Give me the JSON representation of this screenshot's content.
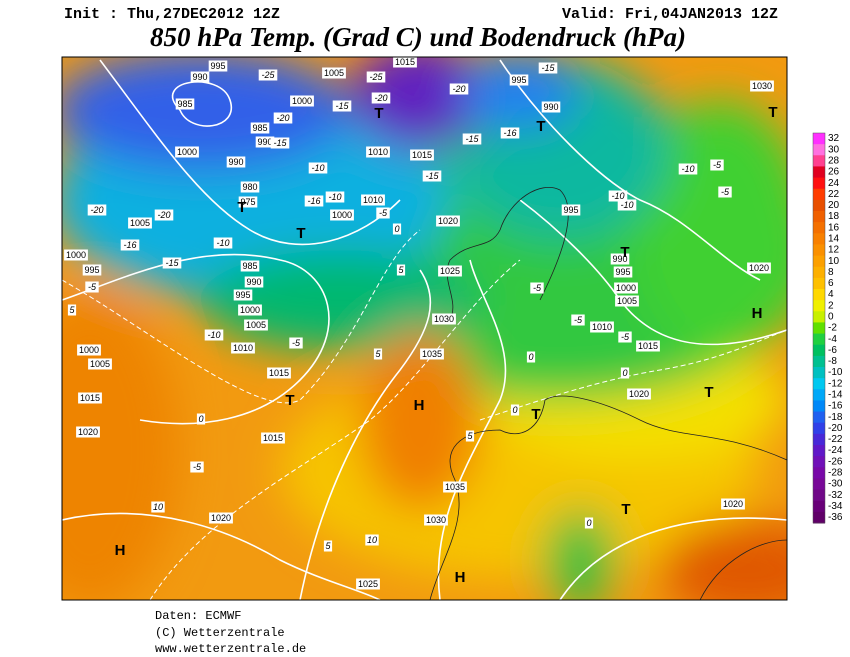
{
  "header": {
    "init": "Init : Thu,27DEC2012 12Z",
    "valid": "Valid: Fri,04JAN2013 12Z",
    "title": "850 hPa Temp. (Grad C) und Bodendruck (hPa)"
  },
  "legend": {
    "values": [
      32,
      30,
      28,
      26,
      24,
      22,
      20,
      18,
      16,
      14,
      12,
      10,
      8,
      6,
      4,
      2,
      0,
      -2,
      -4,
      -6,
      -8,
      -10,
      -12,
      -14,
      -16,
      -18,
      -20,
      -22,
      -24,
      -26,
      -28,
      -30,
      -32,
      -34,
      -36
    ],
    "colors": [
      "#ff30ff",
      "#ff70e0",
      "#ff4090",
      "#e00020",
      "#ff1010",
      "#ff3c00",
      "#e85000",
      "#f06000",
      "#f47000",
      "#f88000",
      "#fa9000",
      "#fca000",
      "#fdb000",
      "#fec000",
      "#ffd800",
      "#f0f000",
      "#c8f000",
      "#60e000",
      "#20d040",
      "#00c060",
      "#00c090",
      "#00c0c0",
      "#00c8f0",
      "#00a8f8",
      "#0088f8",
      "#2060f0",
      "#3040e8",
      "#4828d8",
      "#6018c8",
      "#7010b8",
      "#7808a8",
      "#780898",
      "#700888",
      "#680078",
      "#600068"
    ]
  },
  "map_labels": {
    "isobars": [
      "995",
      "990",
      "985",
      "1005",
      "1000",
      "985",
      "990",
      "1000",
      "990",
      "980",
      "975",
      "1005",
      "1000",
      "1010",
      "1010",
      "1015",
      "1015",
      "995",
      "990",
      "1030",
      "995",
      "1020",
      "1025",
      "1030",
      "1035",
      "990",
      "995",
      "1000",
      "1005",
      "1010",
      "1015",
      "1020",
      "1000",
      "995",
      "1000",
      "1005",
      "1015",
      "1020",
      "1015",
      "1010",
      "1005",
      "1000",
      "995",
      "990",
      "985",
      "1015",
      "1020",
      "1025",
      "1030",
      "1035",
      "1020",
      "1020"
    ],
    "isotherms": [
      "-25",
      "-25",
      "-20",
      "-15",
      "-20",
      "-15",
      "-10",
      "-10",
      "-16",
      "-20",
      "-20",
      "-16",
      "-15",
      "-10",
      "-5",
      "0",
      "5",
      "5",
      "0",
      "-5",
      "-10",
      "-5",
      "10",
      "10",
      "5",
      "5",
      "0",
      "0",
      "-5",
      "-5",
      "0",
      "-15",
      "-20",
      "-15",
      "-16",
      "-15",
      "-10",
      "-10",
      "-10",
      "-5",
      "-5",
      "-5",
      "0",
      "-5",
      "5"
    ],
    "centers": [
      "H",
      "H",
      "H",
      "H",
      "T",
      "T",
      "T",
      "T",
      "T",
      "T",
      "T",
      "T",
      "T",
      "T"
    ]
  },
  "footer": {
    "source": "Daten: ECMWF",
    "copyright": "(C) Wetterzentrale",
    "url": "www.wetterzentrale.de"
  }
}
